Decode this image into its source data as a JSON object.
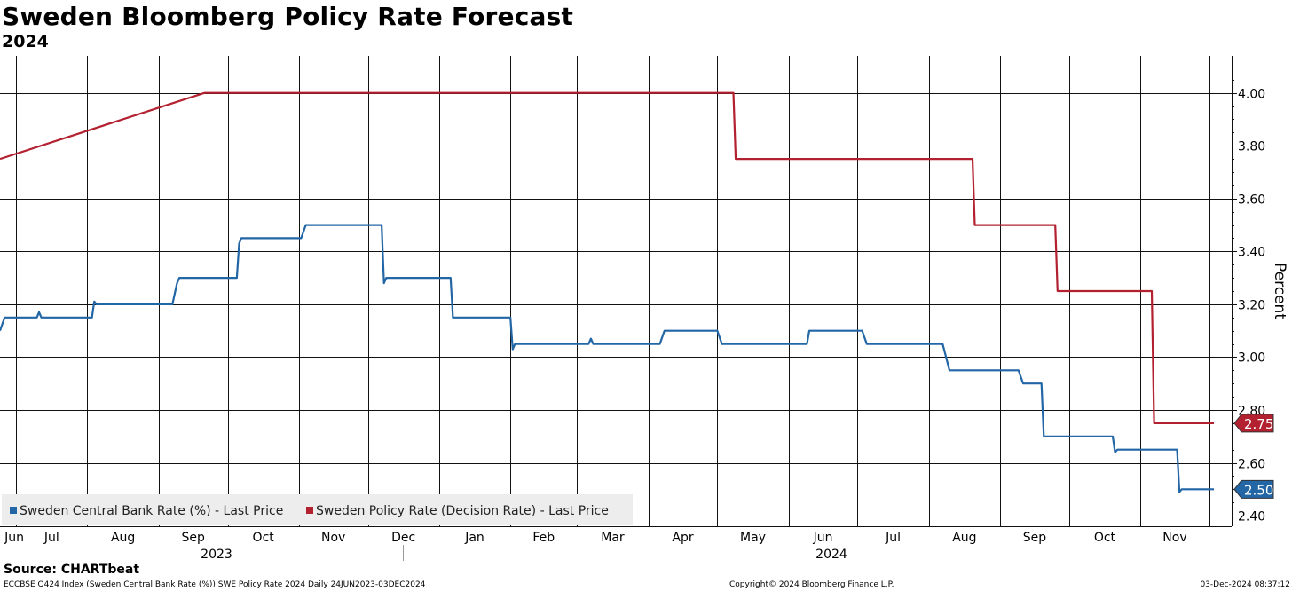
{
  "header": {
    "title": "Sweden Bloomberg Policy Rate Forecast",
    "subtitle": "2024"
  },
  "footer": {
    "source": "Source: CHARTbeat",
    "index_info": "ECCBSE Q424 Index (Sweden Central Bank Rate (%)) SWE Policy Rate 2024  Daily 24JUN2023-03DEC2024",
    "copyright": "Copyright© 2024 Bloomberg Finance L.P.",
    "timestamp": "03-Dec-2024 08:37:12"
  },
  "chart_data": {
    "type": "line",
    "title": "Sweden Bloomberg Policy Rate Forecast",
    "subtitle": "2024",
    "ylabel": "Percent",
    "ylim": [
      2.36,
      4.14
    ],
    "yticks": [
      "2.40",
      "2.60",
      "2.80",
      "3.00",
      "3.20",
      "3.40",
      "3.60",
      "3.80",
      "4.00"
    ],
    "x_range": [
      "2023-06-24",
      "2024-12-03"
    ],
    "month_ticks": [
      "Jun",
      "Jul",
      "Aug",
      "Sep",
      "Oct",
      "Nov",
      "Dec",
      "Jan",
      "Feb",
      "Mar",
      "Apr",
      "May",
      "Jun",
      "Jul",
      "Aug",
      "Sep",
      "Oct",
      "Nov"
    ],
    "year_labels": [
      "2023",
      "2024"
    ],
    "grid": true,
    "legend_position": "bottom-left",
    "series": [
      {
        "name": "Sweden Central Bank Rate (%) - Last Price",
        "color": "#2266a6",
        "last_value": "2.50",
        "points": [
          [
            "2023-06-24",
            3.1
          ],
          [
            "2023-06-26",
            3.15
          ],
          [
            "2023-07-10",
            3.15
          ],
          [
            "2023-07-11",
            3.17
          ],
          [
            "2023-07-12",
            3.15
          ],
          [
            "2023-08-03",
            3.15
          ],
          [
            "2023-08-04",
            3.21
          ],
          [
            "2023-08-05",
            3.2
          ],
          [
            "2023-09-07",
            3.2
          ],
          [
            "2023-09-09",
            3.28
          ],
          [
            "2023-09-10",
            3.3
          ],
          [
            "2023-10-05",
            3.3
          ],
          [
            "2023-10-06",
            3.43
          ],
          [
            "2023-10-07",
            3.45
          ],
          [
            "2023-11-02",
            3.45
          ],
          [
            "2023-11-04",
            3.5
          ],
          [
            "2023-12-07",
            3.5
          ],
          [
            "2023-12-08",
            3.28
          ],
          [
            "2023-12-09",
            3.3
          ],
          [
            "2024-01-06",
            3.3
          ],
          [
            "2024-01-07",
            3.15
          ],
          [
            "2024-02-01",
            3.15
          ],
          [
            "2024-02-02",
            3.03
          ],
          [
            "2024-02-03",
            3.05
          ],
          [
            "2024-03-06",
            3.05
          ],
          [
            "2024-03-07",
            3.07
          ],
          [
            "2024-03-08",
            3.05
          ],
          [
            "2024-04-06",
            3.05
          ],
          [
            "2024-04-08",
            3.1
          ],
          [
            "2024-05-01",
            3.1
          ],
          [
            "2024-05-03",
            3.05
          ],
          [
            "2024-06-09",
            3.05
          ],
          [
            "2024-06-10",
            3.1
          ],
          [
            "2024-07-03",
            3.1
          ],
          [
            "2024-07-05",
            3.05
          ],
          [
            "2024-08-07",
            3.05
          ],
          [
            "2024-08-10",
            2.95
          ],
          [
            "2024-09-09",
            2.95
          ],
          [
            "2024-09-11",
            2.9
          ],
          [
            "2024-09-19",
            2.9
          ],
          [
            "2024-09-20",
            2.7
          ],
          [
            "2024-10-20",
            2.7
          ],
          [
            "2024-10-21",
            2.64
          ],
          [
            "2024-10-22",
            2.65
          ],
          [
            "2024-11-17",
            2.65
          ],
          [
            "2024-11-18",
            2.49
          ],
          [
            "2024-11-19",
            2.5
          ],
          [
            "2024-12-03",
            2.5
          ]
        ]
      },
      {
        "name": "Sweden Policy Rate (Decision Rate) - Last Price",
        "color": "#b3202f",
        "last_value": "2.75",
        "points": [
          [
            "2023-06-24",
            3.75
          ],
          [
            "2023-09-21",
            4.0
          ],
          [
            "2024-05-08",
            4.0
          ],
          [
            "2024-05-09",
            3.75
          ],
          [
            "2024-08-20",
            3.75
          ],
          [
            "2024-08-21",
            3.5
          ],
          [
            "2024-09-25",
            3.5
          ],
          [
            "2024-09-26",
            3.25
          ],
          [
            "2024-11-06",
            3.25
          ],
          [
            "2024-11-07",
            2.75
          ],
          [
            "2024-12-03",
            2.75
          ]
        ]
      }
    ]
  }
}
